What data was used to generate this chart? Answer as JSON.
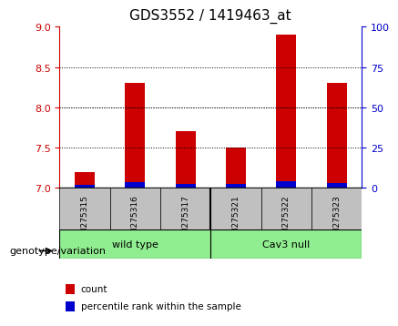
{
  "title": "GDS3552 / 1419463_at",
  "samples": [
    "GSM275315",
    "GSM275316",
    "GSM275317",
    "GSM275321",
    "GSM275322",
    "GSM275323"
  ],
  "red_values": [
    7.2,
    8.3,
    7.7,
    7.5,
    8.9,
    8.3
  ],
  "blue_values": [
    7.04,
    7.07,
    7.05,
    7.05,
    7.08,
    7.06
  ],
  "ylim_left": [
    7,
    9
  ],
  "ylim_right": [
    0,
    100
  ],
  "yticks_left": [
    7,
    7.5,
    8,
    8.5,
    9
  ],
  "yticks_right": [
    0,
    25,
    50,
    75,
    100
  ],
  "grid_values": [
    7.5,
    8.0,
    8.5
  ],
  "bar_base": 7.0,
  "groups": [
    {
      "label": "wild type",
      "samples": [
        0,
        1,
        2
      ],
      "color": "#90EE90"
    },
    {
      "label": "Cav3 null",
      "samples": [
        3,
        4,
        5
      ],
      "color": "#90EE90"
    }
  ],
  "group_label": "genotype/variation",
  "legend_items": [
    {
      "label": "count",
      "color": "#CC0000"
    },
    {
      "label": "percentile rank within the sample",
      "color": "#0000CC"
    }
  ],
  "left_axis_color": "#CC0000",
  "right_axis_color": "#0000CC",
  "bar_width": 0.4,
  "red_color": "#CC0000",
  "blue_color": "#0000CC",
  "bg_plot": "#FFFFFF",
  "bg_label": "#C0C0C0",
  "bg_group_wt": "#90EE90",
  "bg_group_cav": "#90EE90"
}
